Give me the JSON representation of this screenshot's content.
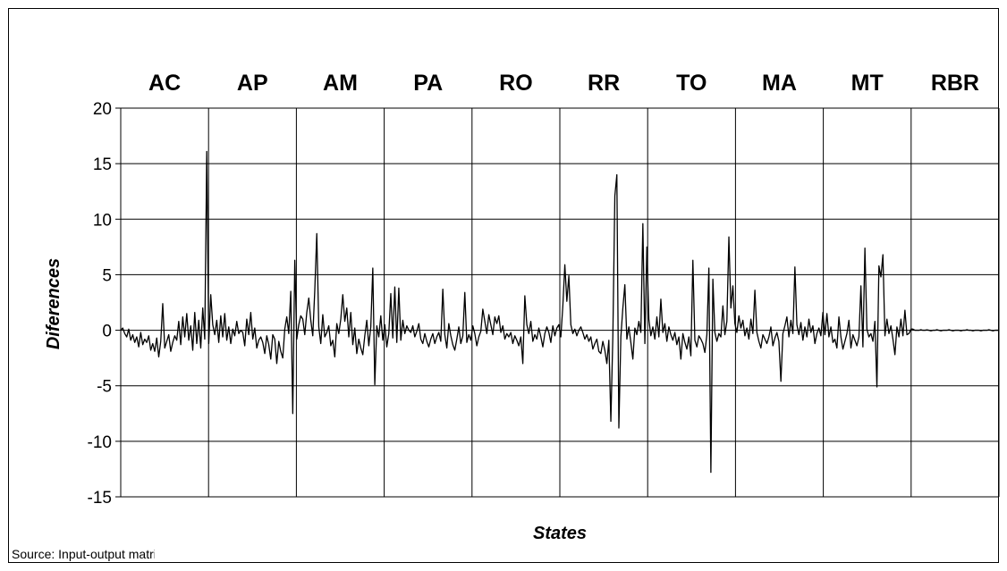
{
  "chart_data": {
    "type": "line",
    "title": "",
    "xlabel": "States",
    "ylabel": "Diferences",
    "ylim": [
      -15,
      20
    ],
    "y_ticks": [
      20,
      15,
      10,
      5,
      0,
      -5,
      -10,
      -15
    ],
    "grid": true,
    "legend": "none",
    "states": [
      "AC",
      "AP",
      "AM",
      "PA",
      "RO",
      "RR",
      "TO",
      "MA",
      "MT",
      "RBR"
    ],
    "series": [
      {
        "color": "#000000",
        "values": [
          0.0,
          0.2,
          -0.3,
          -0.6,
          0.1,
          -0.9,
          -0.4,
          -1.1,
          -0.6,
          -1.5,
          -0.2,
          -1.3,
          -0.8,
          -1.1,
          -0.5,
          -1.8,
          -1.2,
          -1.9,
          -0.7,
          -2.4,
          -1.0,
          2.4,
          -1.6,
          -1.0,
          -0.4,
          -1.9,
          -1.1,
          -0.5,
          -0.9,
          0.8,
          -1.3,
          1.2,
          -0.6,
          1.5,
          -0.9,
          0.4,
          -1.8,
          1.6,
          -1.2,
          0.9,
          -1.6,
          2.0,
          -0.8,
          16.1,
          -1.2,
          3.2,
          0.5,
          -0.4,
          0.9,
          -1.1,
          1.3,
          -0.6,
          1.5,
          -0.9,
          0.3,
          -1.2,
          0.1,
          -0.5,
          0.8,
          -0.3,
          0.0,
          -0.2,
          -1.4,
          1.0,
          -0.4,
          1.6,
          -0.8,
          0.2,
          -1.6,
          -0.9,
          -0.6,
          -1.1,
          -2.1,
          -0.5,
          -1.3,
          -2.6,
          -0.4,
          -0.8,
          -3.0,
          -1.0,
          -1.9,
          -2.5,
          0.1,
          1.2,
          -0.3,
          3.5,
          -7.5,
          6.3,
          -0.8,
          0.5,
          1.3,
          1.0,
          -0.4,
          1.6,
          2.9,
          0.9,
          -0.5,
          3.6,
          8.7,
          0.3,
          -1.2,
          1.4,
          -0.6,
          -0.2,
          0.4,
          -1.4,
          -0.9,
          -2.4,
          0.6,
          -0.3,
          1.0,
          3.2,
          0.8,
          2.0,
          -0.6,
          1.6,
          -1.3,
          0.2,
          -2.1,
          -0.8,
          -1.6,
          -2.2,
          -0.5,
          0.9,
          -1.4,
          0.3,
          5.6,
          -4.9,
          0.4,
          -0.6,
          1.3,
          -0.9,
          0.5,
          -1.5,
          -0.3,
          3.3,
          -0.7,
          3.9,
          -1.1,
          3.8,
          -0.9,
          0.9,
          -0.3,
          0.4,
          0.0,
          -0.2,
          0.4,
          -0.6,
          -0.1,
          0.6,
          -0.8,
          -1.2,
          -0.3,
          -1.0,
          -1.5,
          -0.8,
          -0.3,
          -1.2,
          -0.6,
          -0.2,
          -1.0,
          3.7,
          -0.4,
          -1.6,
          0.6,
          -0.5,
          -1.3,
          -1.8,
          -0.8,
          0.3,
          -1.2,
          -0.5,
          3.4,
          -1.1,
          -0.4,
          -0.9,
          0.4,
          -0.3,
          -1.4,
          -0.6,
          -0.1,
          1.9,
          0.8,
          -0.3,
          1.4,
          0.5,
          -0.4,
          1.2,
          0.6,
          1.3,
          -0.2,
          0.4,
          -0.8,
          -0.3,
          -0.6,
          -0.2,
          -1.2,
          -0.5,
          -0.9,
          -1.4,
          -0.6,
          -3.0,
          3.1,
          0.5,
          -0.3,
          0.8,
          -1.0,
          -0.4,
          -0.8,
          0.2,
          -0.6,
          -1.5,
          -0.3,
          0.3,
          -0.2,
          -1.1,
          0.4,
          -0.5,
          0.2,
          0.5,
          -0.6,
          2.2,
          5.9,
          2.6,
          4.9,
          0.5,
          -0.3,
          0.1,
          -0.5,
          0.0,
          0.3,
          -0.2,
          -0.8,
          -0.4,
          -1.0,
          -0.6,
          -1.7,
          -1.2,
          -0.8,
          -1.9,
          -2.1,
          -1.0,
          -1.8,
          -3.0,
          -0.9,
          -8.2,
          -0.5,
          12.1,
          14.0,
          -8.8,
          -0.6,
          2.0,
          4.1,
          -0.8,
          0.3,
          -1.1,
          -2.6,
          0.2,
          -0.4,
          0.8,
          -0.2,
          9.6,
          -1.2,
          7.5,
          1.0,
          -0.5,
          0.3,
          -0.8,
          1.2,
          -0.6,
          2.8,
          -0.2,
          0.6,
          -1.0,
          0.3,
          -0.4,
          -0.9,
          -0.2,
          -1.3,
          -0.6,
          -2.6,
          -0.3,
          -1.1,
          -1.7,
          -0.6,
          -2.3,
          6.3,
          -0.9,
          -1.5,
          -0.5,
          -0.8,
          -1.2,
          -2.0,
          -0.4,
          5.6,
          -12.8,
          4.6,
          -0.2,
          -1.0,
          -0.3,
          -0.6,
          2.2,
          -0.4,
          0.8,
          8.4,
          2.0,
          4.0,
          0.6,
          -0.2,
          1.3,
          0.2,
          0.9,
          -0.5,
          0.2,
          -0.8,
          1.0,
          -0.3,
          3.6,
          -0.2,
          -1.0,
          -1.6,
          -0.4,
          -0.8,
          -1.2,
          -0.6,
          0.3,
          -1.4,
          -0.7,
          -0.2,
          -1.0,
          -4.6,
          -0.3,
          0.4,
          1.2,
          -0.6,
          0.9,
          -0.3,
          5.7,
          0.5,
          -0.4,
          0.7,
          -0.9,
          0.3,
          -0.6,
          1.0,
          -0.2,
          0.4,
          -1.2,
          -0.3,
          0.2,
          -0.5,
          1.6,
          -0.4,
          1.5,
          -0.6,
          0.3,
          -1.1,
          -0.8,
          -1.6,
          1.2,
          -0.6,
          -1.7,
          -1.0,
          -0.3,
          0.9,
          -1.6,
          -0.4,
          -0.9,
          -1.4,
          -0.6,
          4.0,
          -1.5,
          7.4,
          0.1,
          -0.6,
          -0.3,
          -1.0,
          0.8,
          -5.1,
          5.8,
          4.8,
          6.8,
          -0.5,
          1.0,
          -0.3,
          0.4,
          -0.8,
          -2.2,
          0.3,
          -0.6,
          1.0,
          -0.5,
          1.8,
          -0.4,
          -0.3,
          0.1,
          0.1,
          0.0,
          0.0,
          0.0,
          0.05,
          0.0,
          0.0,
          0.03,
          0.0,
          -0.05,
          0.0,
          0.0,
          0.05,
          0.0,
          -0.05,
          0.0,
          0.0,
          0.0,
          0.05,
          0.0,
          -0.05,
          0.0,
          0.0,
          0.0,
          -0.05,
          0.0,
          0.0,
          0.05,
          0.0,
          0.0,
          -0.05,
          0.0,
          0.0,
          0.0,
          -0.05,
          0.0,
          0.0,
          0.0,
          0.05,
          0.0,
          -0.05,
          0.0,
          0.0,
          0.0
        ]
      }
    ]
  },
  "source_note": "Source: Input-output matrix"
}
